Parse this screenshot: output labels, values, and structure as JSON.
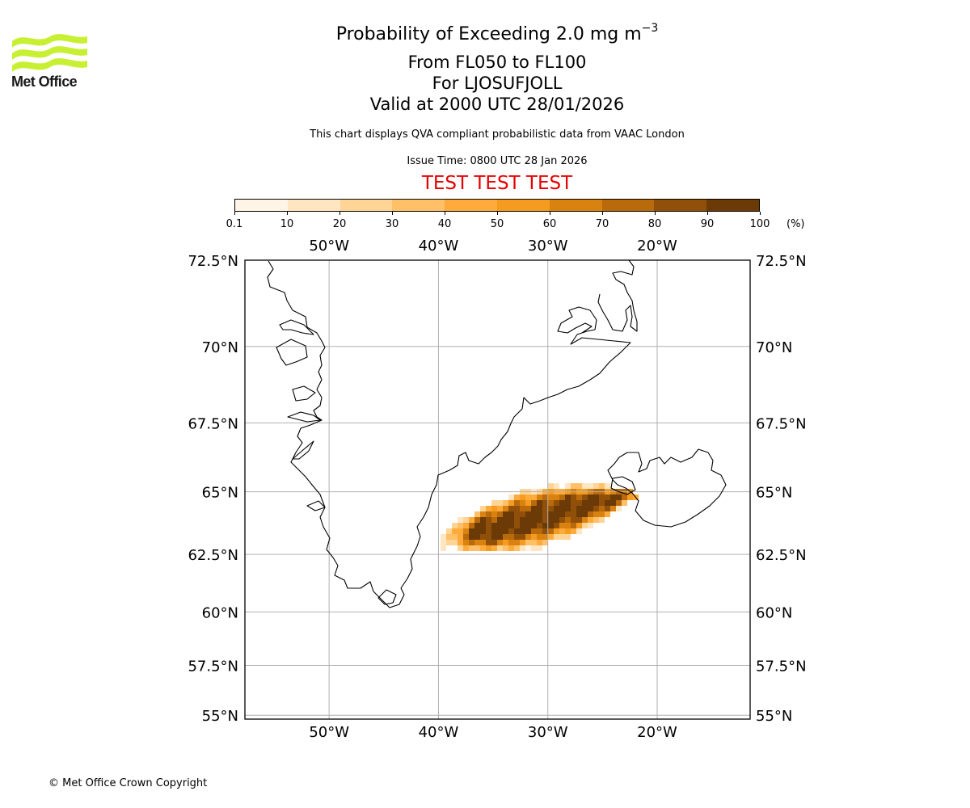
{
  "logo": {
    "text": "Met Office",
    "color": "#c8f032"
  },
  "title": {
    "main": "Probability of Exceeding 2.0 mg m",
    "main_sup": "−3",
    "levels": "From FL050 to FL100",
    "volcano": "For LJOSUFJOLL",
    "valid": "Valid at 2000 UTC 28/01/2026",
    "note": "This chart displays QVA compliant probabilistic data from VAAC London",
    "issue": "Issue Time: 0800 UTC 28 Jan 2026",
    "test_banner": "TEST TEST TEST"
  },
  "colorbar": {
    "ticks": [
      "0.1",
      "10",
      "20",
      "30",
      "40",
      "50",
      "60",
      "70",
      "80",
      "90",
      "100"
    ],
    "unit": "(%)",
    "colors": [
      "#fff5e6",
      "#ffe6c2",
      "#ffd596",
      "#ffc068",
      "#ffab3b",
      "#f59b1f",
      "#d98210",
      "#b96a0b",
      "#915009",
      "#6b3a07"
    ]
  },
  "map": {
    "lon_range": [
      -57.7,
      -11.5
    ],
    "lat_range": [
      54.8,
      72.5
    ],
    "lon_ticks": [
      "50°W",
      "40°W",
      "30°W",
      "20°W"
    ],
    "lat_ticks": [
      "72.5°N",
      "70°N",
      "67.5°N",
      "65°N",
      "62.5°N",
      "60°N",
      "57.5°N",
      "55°N"
    ],
    "gridlines": true,
    "plume_source": {
      "lon": -22.5,
      "lat": 64.9
    }
  },
  "footer": "© Met Office Crown Copyright"
}
